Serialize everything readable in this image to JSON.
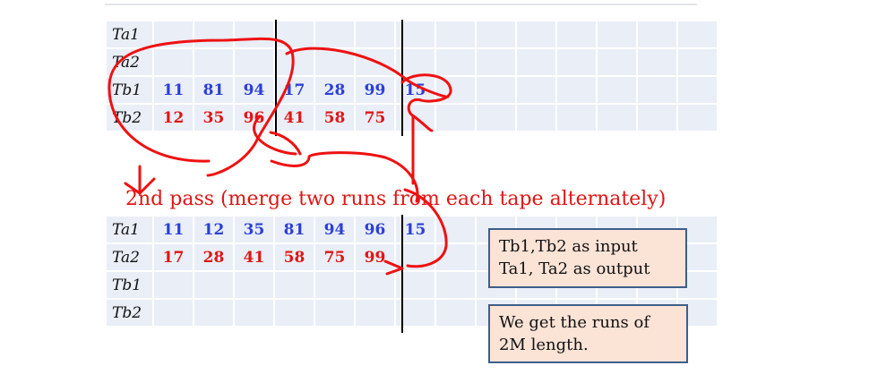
{
  "table1": {
    "rows": [
      {
        "label": "Ta1",
        "color": "blue",
        "cells": [
          "",
          "",
          "",
          "",
          "",
          "",
          "",
          "",
          "",
          "",
          "",
          "",
          "",
          ""
        ]
      },
      {
        "label": "Ta2",
        "color": "blue",
        "cells": [
          "",
          "",
          "",
          "",
          "",
          "",
          "",
          "",
          "",
          "",
          "",
          "",
          "",
          ""
        ]
      },
      {
        "label": "Tb1",
        "color": "blue",
        "cells": [
          "11",
          "81",
          "94",
          "17",
          "28",
          "99",
          "15",
          "",
          "",
          "",
          "",
          "",
          "",
          ""
        ]
      },
      {
        "label": "Tb2",
        "color": "red",
        "cells": [
          "12",
          "35",
          "96",
          "41",
          "58",
          "75",
          "",
          "",
          "",
          "",
          "",
          "",
          "",
          ""
        ]
      }
    ]
  },
  "pass_title": "2nd pass (merge two runs from each tape alternately)",
  "table2": {
    "rows": [
      {
        "label": "Ta1",
        "color": "blue",
        "cells": [
          "11",
          "12",
          "35",
          "81",
          "94",
          "96",
          "15",
          "",
          "",
          "",
          "",
          "",
          "",
          ""
        ]
      },
      {
        "label": "Ta2",
        "color": "red",
        "cells": [
          "17",
          "28",
          "41",
          "58",
          "75",
          "99",
          "",
          "",
          "",
          "",
          "",
          "",
          "",
          ""
        ]
      },
      {
        "label": "Tb1",
        "color": "blue",
        "cells": [
          "",
          "",
          "",
          "",
          "",
          "",
          "",
          "",
          "",
          "",
          "",
          "",
          "",
          ""
        ]
      },
      {
        "label": "Tb2",
        "color": "blue",
        "cells": [
          "",
          "",
          "",
          "",
          "",
          "",
          "",
          "",
          "",
          "",
          "",
          "",
          "",
          ""
        ]
      }
    ]
  },
  "notes": {
    "io_line1": "Tb1,Tb2 as input",
    "io_line2": "Ta1, Ta2 as output",
    "runs_line1": "We get the runs of",
    "runs_line2": "2M length."
  },
  "colors": {
    "blue": "#2b3fd6",
    "red": "#e01515",
    "cell_bg": "#e9eef7",
    "note_bg": "#fbe3d6",
    "note_border": "#3d5f8a"
  }
}
